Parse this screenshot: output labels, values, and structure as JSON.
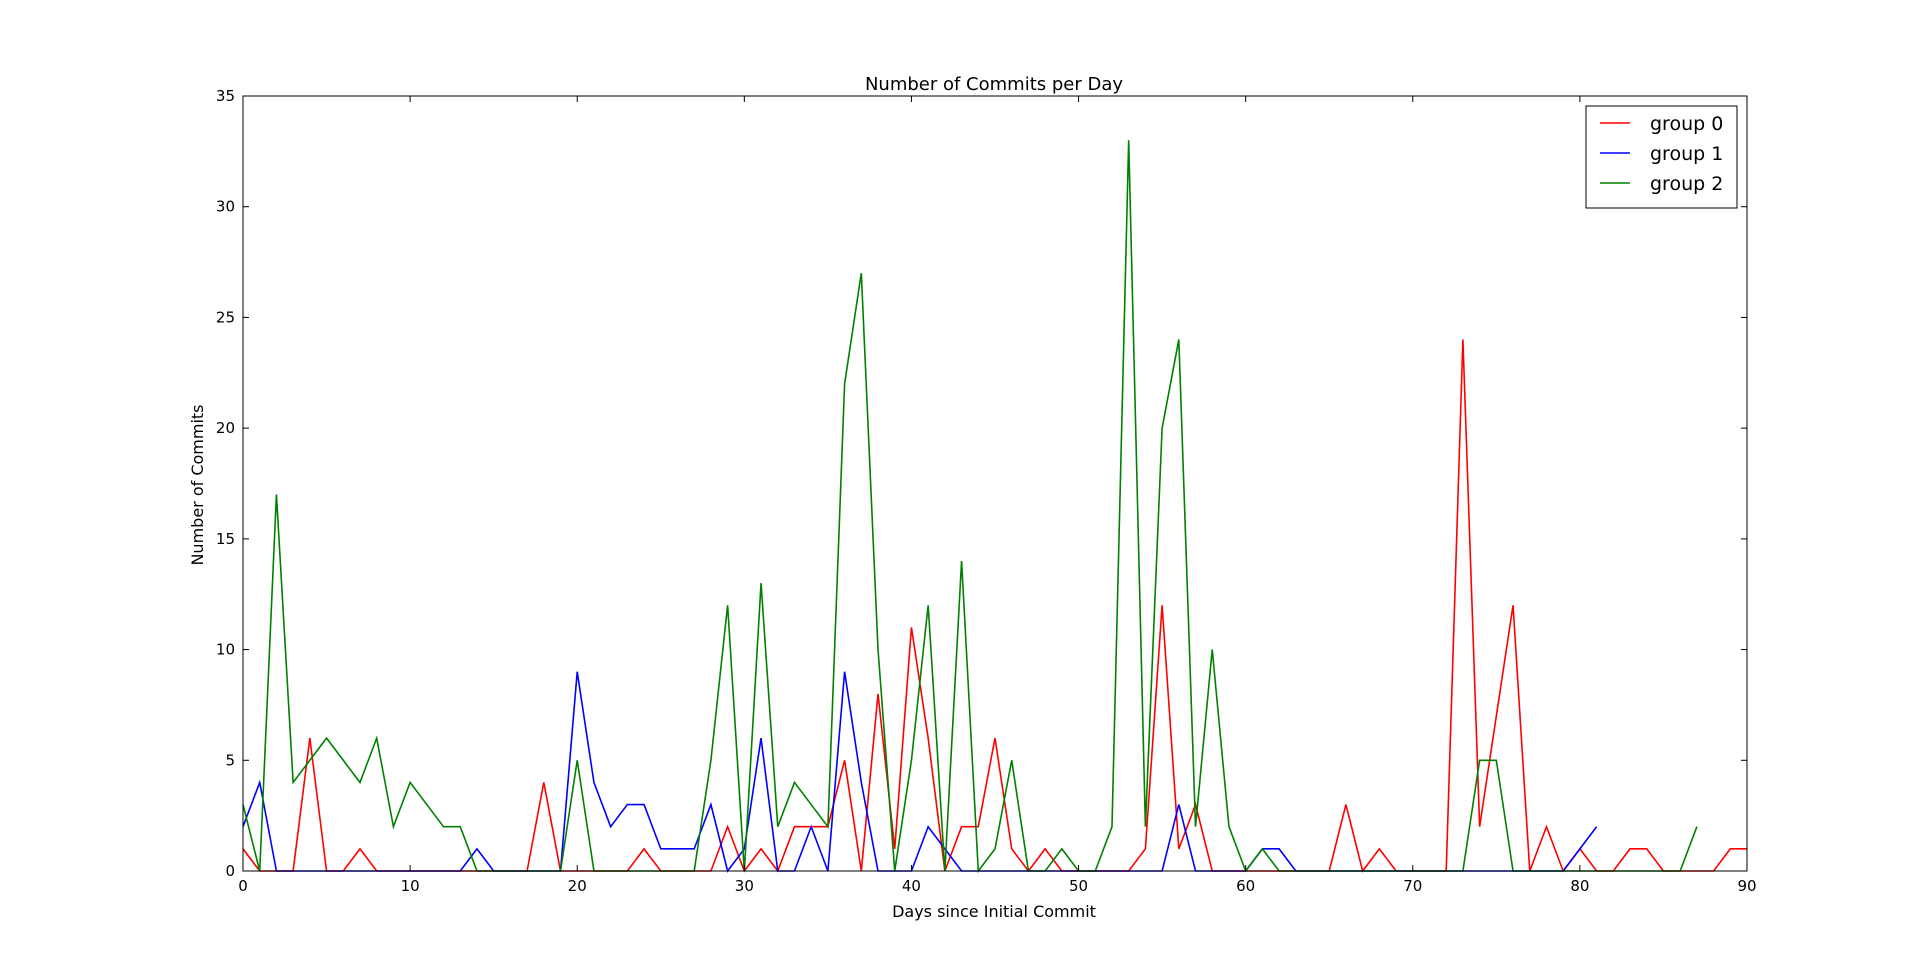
{
  "chart_data": {
    "type": "line",
    "title": "Number of Commits per Day",
    "xlabel": "Days since Initial Commit",
    "ylabel": "Number of Commits",
    "xlim": [
      0,
      90
    ],
    "ylim": [
      0,
      35
    ],
    "xticks": [
      0,
      10,
      20,
      30,
      40,
      50,
      60,
      70,
      80,
      90
    ],
    "yticks": [
      0,
      5,
      10,
      15,
      20,
      25,
      30,
      35
    ],
    "grid": false,
    "legend_position": "top-right",
    "series": [
      {
        "name": "group 0",
        "color": "#ff0000",
        "x": [
          0,
          1,
          2,
          3,
          4,
          5,
          6,
          7,
          8,
          9,
          10,
          11,
          12,
          13,
          14,
          15,
          16,
          17,
          18,
          19,
          20,
          21,
          22,
          23,
          24,
          25,
          26,
          27,
          28,
          29,
          30,
          31,
          32,
          33,
          34,
          35,
          36,
          37,
          38,
          39,
          40,
          41,
          42,
          43,
          44,
          45,
          46,
          47,
          48,
          49,
          50,
          51,
          52,
          53,
          54,
          55,
          56,
          57,
          58,
          59,
          60,
          61,
          62,
          63,
          64,
          65,
          66,
          67,
          68,
          69,
          70,
          71,
          72,
          73,
          74,
          75,
          76,
          77,
          78,
          79,
          80,
          81,
          82,
          83,
          84,
          85,
          86,
          87,
          88,
          89,
          90
        ],
        "y": [
          1,
          0,
          0,
          0,
          6,
          0,
          0,
          1,
          0,
          0,
          0,
          0,
          0,
          0,
          0,
          0,
          0,
          0,
          4,
          0,
          0,
          0,
          0,
          0,
          1,
          0,
          0,
          0,
          0,
          2,
          0,
          1,
          0,
          2,
          2,
          2,
          5,
          0,
          8,
          1,
          11,
          6,
          0,
          2,
          2,
          6,
          1,
          0,
          1,
          0,
          0,
          0,
          0,
          0,
          1,
          12,
          1,
          3,
          0,
          0,
          0,
          0,
          0,
          0,
          0,
          0,
          3,
          0,
          1,
          0,
          0,
          0,
          0,
          24,
          2,
          7,
          12,
          0,
          2,
          0,
          1,
          0,
          0,
          1,
          1,
          0,
          0,
          0,
          0,
          1,
          1
        ]
      },
      {
        "name": "group 1",
        "color": "#0000ff",
        "x": [
          0,
          1,
          2,
          3,
          4,
          5,
          6,
          7,
          8,
          9,
          10,
          11,
          12,
          13,
          14,
          15,
          16,
          17,
          18,
          19,
          20,
          21,
          22,
          23,
          24,
          25,
          26,
          27,
          28,
          29,
          30,
          31,
          32,
          33,
          34,
          35,
          36,
          37,
          38,
          39,
          40,
          41,
          42,
          43,
          44,
          45,
          46,
          47,
          48,
          49,
          50,
          51,
          52,
          53,
          54,
          55,
          56,
          57,
          58,
          59,
          60,
          61,
          62,
          63,
          64,
          65,
          66,
          67,
          68,
          69,
          70,
          71,
          72,
          73,
          74,
          75,
          76,
          77,
          78,
          79,
          80,
          81
        ],
        "y": [
          2,
          4,
          0,
          0,
          0,
          0,
          0,
          0,
          0,
          0,
          0,
          0,
          0,
          0,
          1,
          0,
          0,
          0,
          0,
          0,
          9,
          4,
          2,
          3,
          3,
          1,
          1,
          1,
          3,
          0,
          1,
          6,
          0,
          0,
          2,
          0,
          9,
          4,
          0,
          0,
          0,
          2,
          1,
          0,
          0,
          0,
          0,
          0,
          0,
          0,
          0,
          0,
          0,
          0,
          0,
          0,
          3,
          0,
          0,
          0,
          0,
          1,
          1,
          0,
          0,
          0,
          0,
          0,
          0,
          0,
          0,
          0,
          0,
          0,
          0,
          0,
          0,
          0,
          0,
          0,
          1,
          2
        ]
      },
      {
        "name": "group 2",
        "color": "#008000",
        "x": [
          0,
          1,
          2,
          3,
          4,
          5,
          6,
          7,
          8,
          9,
          10,
          11,
          12,
          13,
          14,
          15,
          16,
          17,
          18,
          19,
          20,
          21,
          22,
          23,
          24,
          25,
          26,
          27,
          28,
          29,
          30,
          31,
          32,
          33,
          34,
          35,
          36,
          37,
          38,
          39,
          40,
          41,
          42,
          43,
          44,
          45,
          46,
          47,
          48,
          49,
          50,
          51,
          52,
          53,
          54,
          55,
          56,
          57,
          58,
          59,
          60,
          61,
          62,
          63,
          64,
          65,
          66,
          67,
          68,
          69,
          70,
          71,
          72,
          73,
          74,
          75,
          76,
          77,
          78,
          79,
          80,
          81,
          82,
          83,
          84,
          85,
          86,
          87
        ],
        "y": [
          3,
          0,
          17,
          4,
          5,
          6,
          5,
          4,
          6,
          2,
          4,
          3,
          2,
          2,
          0,
          0,
          0,
          0,
          0,
          0,
          5,
          0,
          0,
          0,
          0,
          0,
          0,
          0,
          5,
          12,
          0,
          13,
          2,
          4,
          3,
          2,
          22,
          27,
          10,
          0,
          5,
          12,
          0,
          14,
          0,
          1,
          5,
          0,
          0,
          1,
          0,
          0,
          2,
          33,
          2,
          20,
          24,
          2,
          10,
          2,
          0,
          1,
          0,
          0,
          0,
          0,
          0,
          0,
          0,
          0,
          0,
          0,
          0,
          0,
          5,
          5,
          0,
          0,
          0,
          0,
          0,
          0,
          0,
          0,
          0,
          0,
          0,
          2
        ]
      }
    ]
  }
}
